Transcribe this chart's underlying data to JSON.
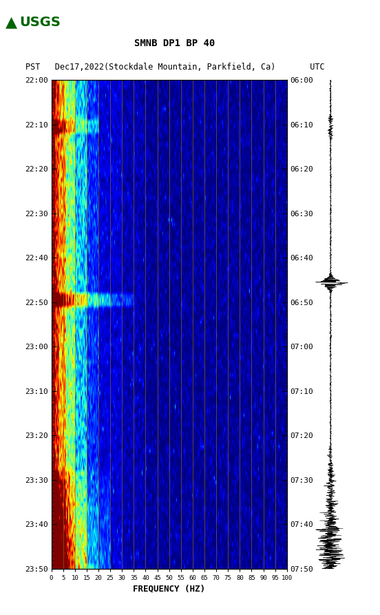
{
  "title_line1": "SMNB DP1 BP 40",
  "title_line2": "PST   Dec17,2022(Stockdale Mountain, Parkfield, Ca)       UTC",
  "xlabel": "FREQUENCY (HZ)",
  "freq_min": 0,
  "freq_max": 100,
  "freq_ticks": [
    0,
    5,
    10,
    15,
    20,
    25,
    30,
    35,
    40,
    45,
    50,
    55,
    60,
    65,
    70,
    75,
    80,
    85,
    90,
    95,
    100
  ],
  "left_time_labels": [
    "22:00",
    "22:10",
    "22:20",
    "22:30",
    "22:40",
    "22:50",
    "23:00",
    "23:10",
    "23:20",
    "23:30",
    "23:40",
    "23:50"
  ],
  "right_time_labels": [
    "06:00",
    "06:10",
    "06:20",
    "06:30",
    "06:40",
    "06:50",
    "07:00",
    "07:10",
    "07:20",
    "07:30",
    "07:40",
    "07:50"
  ],
  "vertical_lines_freq": [
    5,
    10,
    15,
    20,
    25,
    30,
    35,
    40,
    45,
    50,
    55,
    60,
    65,
    70,
    75,
    80,
    85,
    90,
    95
  ],
  "background_color": "#ffffff",
  "num_time_steps": 110,
  "num_freq_bins": 400
}
